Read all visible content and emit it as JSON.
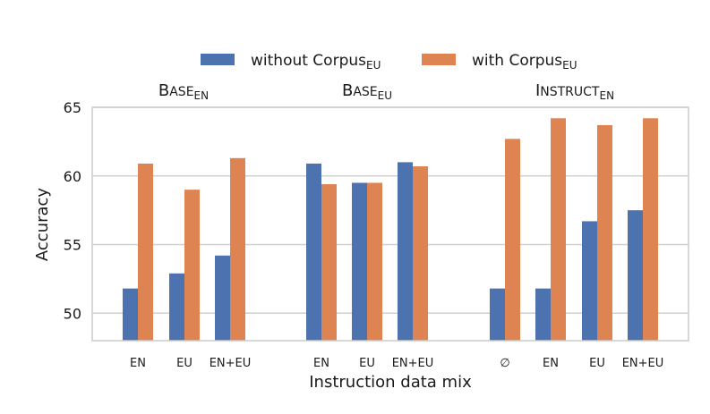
{
  "chart_data": {
    "type": "bar",
    "ylabel": "Accuracy",
    "xlabel": "Instruction data mix",
    "ylim": [
      48,
      65
    ],
    "yticks": [
      50,
      55,
      60,
      65
    ],
    "grid": true,
    "legend_position": "top-center",
    "colors": {
      "without": "#4c72b0",
      "with": "#dd8452"
    },
    "series": [
      {
        "key": "without",
        "name": "without Corpus",
        "subscript": "EU"
      },
      {
        "key": "with",
        "name": "with Corpus",
        "subscript": "EU"
      }
    ],
    "groups": [
      {
        "title": {
          "first": "B",
          "rest": "ASE",
          "subscript": "EN"
        },
        "categories": [
          "EN",
          "EU",
          "EN+EU"
        ],
        "without": [
          51.8,
          52.9,
          54.2
        ],
        "with": [
          60.9,
          59.0,
          61.3
        ]
      },
      {
        "title": {
          "first": "B",
          "rest": "ASE",
          "subscript": "EU"
        },
        "categories": [
          "EN",
          "EU",
          "EN+EU"
        ],
        "without": [
          60.9,
          59.5,
          61.0
        ],
        "with": [
          59.4,
          59.5,
          60.7
        ]
      },
      {
        "title": {
          "first": "I",
          "rest": "NSTRUCT",
          "subscript": "EN"
        },
        "categories": [
          "∅",
          "EN",
          "EU",
          "EN+EU"
        ],
        "without": [
          51.8,
          51.8,
          56.7,
          57.5
        ],
        "with": [
          62.7,
          64.2,
          63.7,
          64.2
        ]
      }
    ]
  }
}
